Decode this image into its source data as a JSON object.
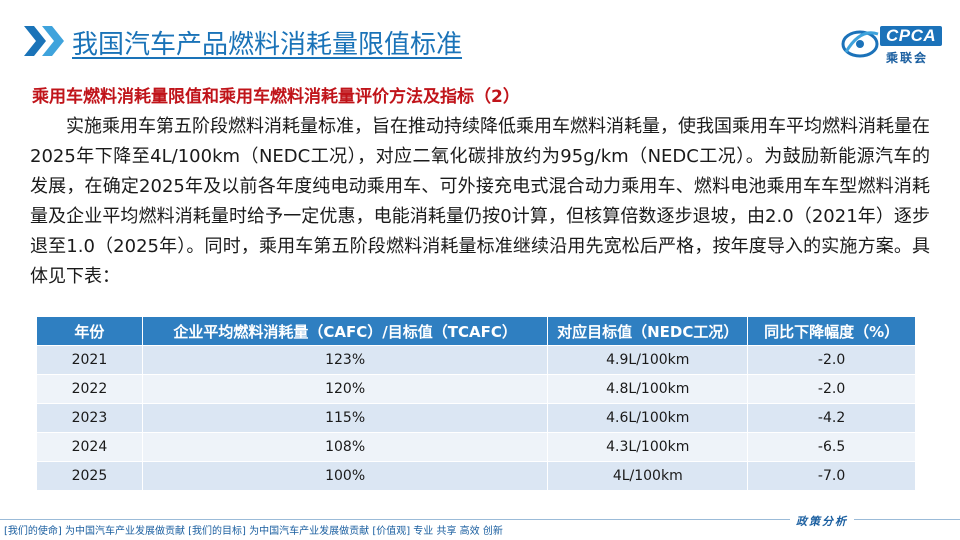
{
  "header": {
    "title": "我国汽车产品燃料消耗量限值标准",
    "logo": {
      "brand": "CPCA",
      "brand_cn": "乘联会",
      "alt_mark": "CPCA"
    }
  },
  "subtitle": "乘用车燃料消耗量限值和乘用车燃料消耗量评价方法及指标（2）",
  "paragraph": "实施乘用车第五阶段燃料消耗量标准，旨在推动持续降低乘用车燃料消耗量，使我国乘用车平均燃料消耗量在2025年下降至4L/100km（NEDC工况），对应二氧化碳排放约为95g/km（NEDC工况）。为鼓励新能源汽车的发展，在确定2025年及以前各年度纯电动乘用车、可外接充电式混合动力乘用车、燃料电池乘用车车型燃料消耗量及企业平均燃料消耗量时给予一定优惠，电能消耗量仍按0计算，但核算倍数逐步退坡，由2.0（2021年）逐步退至1.0（2025年）。同时，乘用车第五阶段燃料消耗量标准继续沿用先宽松后严格，按年度导入的实施方案。具体见下表：",
  "table": {
    "headers": [
      "年份",
      "企业平均燃料消耗量（CAFC）/目标值（TCAFC）",
      "对应目标值（NEDC工况）",
      "同比下降幅度（%）"
    ],
    "rows": [
      [
        "2021",
        "123%",
        "4.9L/100km",
        "-2.0"
      ],
      [
        "2022",
        "120%",
        "4.8L/100km",
        "-2.0"
      ],
      [
        "2023",
        "115%",
        "4.6L/100km",
        "-4.2"
      ],
      [
        "2024",
        "108%",
        "4.3L/100km",
        "-6.5"
      ],
      [
        "2025",
        "100%",
        "4L/100km",
        "-7.0"
      ]
    ]
  },
  "footer": {
    "left": "[我们的使命] 为中国汽车产业发展做贡献 [我们的目标] 为中国汽车产业发展做贡献 [价值观] 专业 共享 高效 创新",
    "right": "政策分析"
  },
  "colors": {
    "title": "#1a73b8",
    "subtitle": "#c0141a",
    "table_header": "#2f7fc1",
    "row_odd": "#dbe6f3",
    "row_even": "#eef3f9"
  }
}
